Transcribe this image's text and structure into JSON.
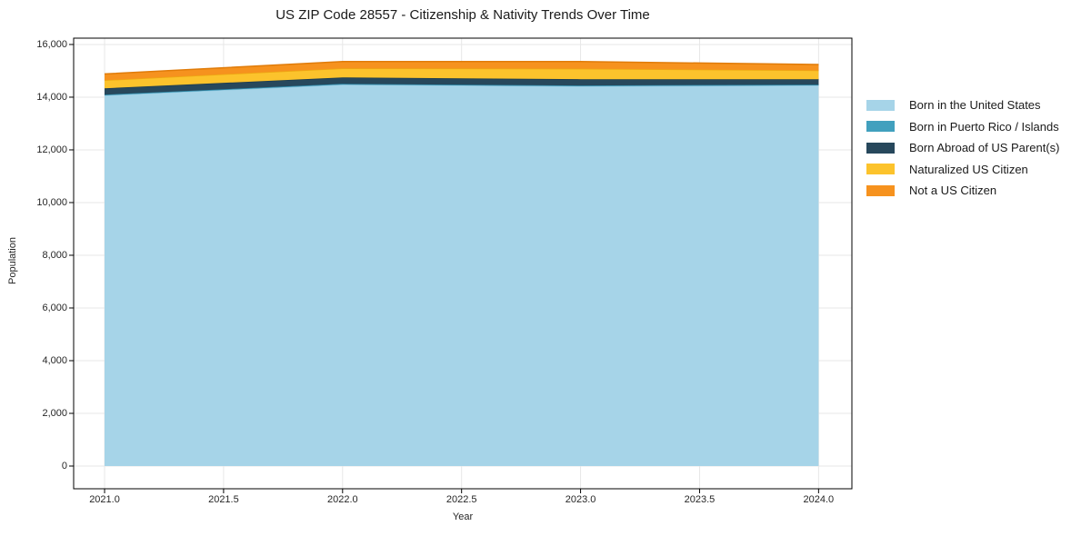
{
  "chart_data": {
    "type": "area",
    "stacked": true,
    "title": "US ZIP Code 28557 - Citizenship & Nativity Trends Over Time",
    "xlabel": "Year",
    "ylabel": "Population",
    "x": [
      2021,
      2022,
      2023,
      2024
    ],
    "series": [
      {
        "name": "Born in the United States",
        "color": "#a6d4e8",
        "edge": "#8ec6de",
        "values": [
          14070,
          14480,
          14420,
          14450
        ]
      },
      {
        "name": "Born in Puerto Rico / Islands",
        "color": "#41a0be",
        "edge": "#2f8cab",
        "values": [
          25,
          25,
          25,
          25
        ]
      },
      {
        "name": "Born Abroad of US Parent(s)",
        "color": "#27485c",
        "edge": "#1e3c4e",
        "values": [
          240,
          245,
          235,
          205
        ]
      },
      {
        "name": "Naturalized US Citizen",
        "color": "#fcc32c",
        "edge": "#eda912",
        "values": [
          310,
          345,
          400,
          335
        ]
      },
      {
        "name": "Not a US Citizen",
        "color": "#f6921e",
        "edge": "#e07c0a",
        "values": [
          235,
          255,
          270,
          225
        ]
      }
    ],
    "xlim": [
      2020.87,
      2024.14
    ],
    "ylim": [
      -862,
      16240
    ],
    "x_ticks": [
      2021.0,
      2021.5,
      2022.0,
      2022.5,
      2023.0,
      2023.5,
      2024.0
    ],
    "x_tick_labels": [
      "2021.0",
      "2021.5",
      "2022.0",
      "2022.5",
      "2023.0",
      "2023.5",
      "2024.0"
    ],
    "y_ticks": [
      0,
      2000,
      4000,
      6000,
      8000,
      10000,
      12000,
      14000,
      16000
    ],
    "y_tick_labels": [
      "0",
      "2,000",
      "4,000",
      "6,000",
      "8,000",
      "10,000",
      "12,000",
      "14,000",
      "16,000"
    ],
    "grid": true,
    "legend_position": "right outside"
  },
  "colors": {
    "background": "#ffffff",
    "grid": "#e7e7e7",
    "spine": "#000000",
    "text": "#262626"
  }
}
